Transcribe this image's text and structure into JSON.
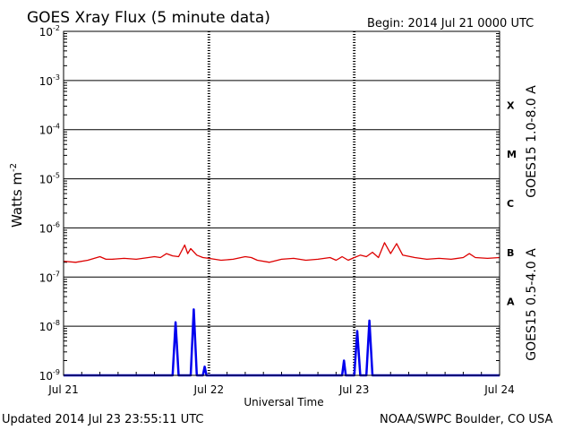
{
  "header": {
    "title": "GOES Xray Flux (5 minute data)",
    "begin": "Begin:  2014 Jul 21 0000 UTC"
  },
  "footer": {
    "updated": "Updated 2014 Jul 23 23:55:11 UTC",
    "credit": "NOAA/SWPC Boulder, CO USA"
  },
  "colors": {
    "long": "#dd0000",
    "short": "#0000ee"
  },
  "chart_data": {
    "type": "line",
    "xlabel": "Universal Time",
    "ylabel_base": "Watts m",
    "ylabel_exp": "-2",
    "y_scale": "log",
    "ylim": [
      1e-09,
      0.01
    ],
    "y_ticks": [
      {
        "mant": "10",
        "exp": "-9",
        "value": 1e-09
      },
      {
        "mant": "10",
        "exp": "-8",
        "value": 1e-08
      },
      {
        "mant": "10",
        "exp": "-7",
        "value": 1e-07
      },
      {
        "mant": "10",
        "exp": "-6",
        "value": 1e-06
      },
      {
        "mant": "10",
        "exp": "-5",
        "value": 1e-05
      },
      {
        "mant": "10",
        "exp": "-4",
        "value": 0.0001
      },
      {
        "mant": "10",
        "exp": "-3",
        "value": 0.001
      },
      {
        "mant": "10",
        "exp": "-2",
        "value": 0.01
      }
    ],
    "x_unit": "hours since Jul 21 0000 UTC",
    "xlim": [
      0,
      72
    ],
    "x_ticks": [
      {
        "label": "Jul 21",
        "hours": 0
      },
      {
        "label": "Jul 22",
        "hours": 24
      },
      {
        "label": "Jul 23",
        "hours": 48
      },
      {
        "label": "Jul 24",
        "hours": 72
      }
    ],
    "flare_classes": [
      {
        "label": "A",
        "low": 1e-08
      },
      {
        "label": "B",
        "low": 1e-07
      },
      {
        "label": "C",
        "low": 1e-06
      },
      {
        "label": "M",
        "low": 1e-05
      },
      {
        "label": "X",
        "low": 0.0001
      }
    ],
    "grid": true,
    "series": [
      {
        "name": "GOES15 1.0-8.0 A",
        "points": [
          [
            0,
            2.1e-07
          ],
          [
            2,
            2e-07
          ],
          [
            4,
            2.2e-07
          ],
          [
            6,
            2.6e-07
          ],
          [
            7,
            2.3e-07
          ],
          [
            8,
            2.3e-07
          ],
          [
            10,
            2.4e-07
          ],
          [
            12,
            2.3e-07
          ],
          [
            14,
            2.5e-07
          ],
          [
            15,
            2.6e-07
          ],
          [
            16,
            2.5e-07
          ],
          [
            17,
            3e-07
          ],
          [
            18,
            2.7e-07
          ],
          [
            19,
            2.6e-07
          ],
          [
            20,
            4.5e-07
          ],
          [
            20.5,
            3e-07
          ],
          [
            21,
            3.8e-07
          ],
          [
            22,
            2.8e-07
          ],
          [
            23,
            2.5e-07
          ],
          [
            24,
            2.4e-07
          ],
          [
            26,
            2.2e-07
          ],
          [
            28,
            2.3e-07
          ],
          [
            30,
            2.6e-07
          ],
          [
            31,
            2.5e-07
          ],
          [
            32,
            2.2e-07
          ],
          [
            34,
            2e-07
          ],
          [
            36,
            2.3e-07
          ],
          [
            38,
            2.4e-07
          ],
          [
            40,
            2.2e-07
          ],
          [
            42,
            2.3e-07
          ],
          [
            44,
            2.5e-07
          ],
          [
            45,
            2.2e-07
          ],
          [
            46,
            2.6e-07
          ],
          [
            47,
            2.2e-07
          ],
          [
            48,
            2.5e-07
          ],
          [
            49,
            2.8e-07
          ],
          [
            50,
            2.6e-07
          ],
          [
            51,
            3.2e-07
          ],
          [
            52,
            2.5e-07
          ],
          [
            53,
            5e-07
          ],
          [
            54,
            3e-07
          ],
          [
            55,
            4.8e-07
          ],
          [
            56,
            2.8e-07
          ],
          [
            58,
            2.5e-07
          ],
          [
            60,
            2.3e-07
          ],
          [
            62,
            2.4e-07
          ],
          [
            64,
            2.3e-07
          ],
          [
            66,
            2.5e-07
          ],
          [
            67,
            3e-07
          ],
          [
            68,
            2.5e-07
          ],
          [
            70,
            2.4e-07
          ],
          [
            72,
            2.5e-07
          ]
        ]
      },
      {
        "name": "GOES15 0.5-4.0 A",
        "points": [
          [
            0,
            1e-09
          ],
          [
            18,
            1e-09
          ],
          [
            18.5,
            1.2e-08
          ],
          [
            19,
            1e-09
          ],
          [
            21,
            1e-09
          ],
          [
            21.5,
            2.2e-08
          ],
          [
            22,
            1e-09
          ],
          [
            23,
            1e-09
          ],
          [
            23.3,
            1.5e-09
          ],
          [
            23.6,
            1e-09
          ],
          [
            46,
            1e-09
          ],
          [
            46.3,
            2e-09
          ],
          [
            46.6,
            1e-09
          ],
          [
            48,
            1e-09
          ],
          [
            48.5,
            8e-09
          ],
          [
            49,
            1e-09
          ],
          [
            50,
            1e-09
          ],
          [
            50.5,
            1.3e-08
          ],
          [
            51,
            1e-09
          ],
          [
            72,
            1e-09
          ]
        ]
      }
    ]
  }
}
